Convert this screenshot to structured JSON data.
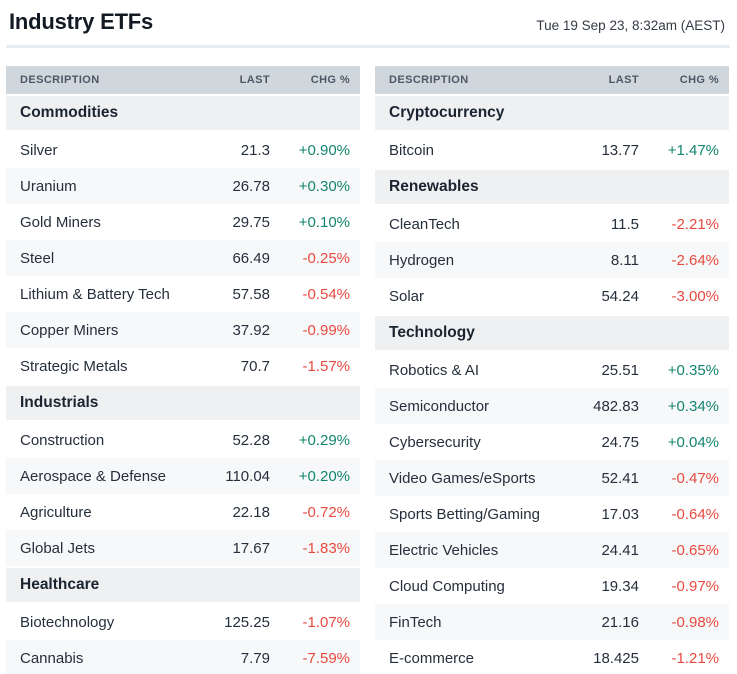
{
  "page": {
    "title": "Industry ETFs",
    "datetime": "Tue 19 Sep 23, 8:32am (AEST)"
  },
  "table_headers": {
    "description": "DESCRIPTION",
    "last": "LAST",
    "chg": "CHG %"
  },
  "colors": {
    "positive": "#13856e",
    "negative": "#e84a3f",
    "header_bg": "#d0d7dc",
    "section_bg": "#eef0f2",
    "stripe_bg": "#f7f8f9",
    "divider": "#e4edf3"
  },
  "tables": [
    {
      "name": "left",
      "rows": [
        {
          "type": "section",
          "label": "Commodities"
        },
        {
          "type": "data",
          "description": "Silver",
          "last": "21.3",
          "chg": "+0.90%"
        },
        {
          "type": "data",
          "description": "Uranium",
          "last": "26.78",
          "chg": "+0.30%"
        },
        {
          "type": "data",
          "description": "Gold Miners",
          "last": "29.75",
          "chg": "+0.10%"
        },
        {
          "type": "data",
          "description": "Steel",
          "last": "66.49",
          "chg": "-0.25%"
        },
        {
          "type": "data",
          "description": "Lithium & Battery Tech",
          "last": "57.58",
          "chg": "-0.54%"
        },
        {
          "type": "data",
          "description": "Copper Miners",
          "last": "37.92",
          "chg": "-0.99%"
        },
        {
          "type": "data",
          "description": "Strategic Metals",
          "last": "70.7",
          "chg": "-1.57%"
        },
        {
          "type": "section",
          "label": "Industrials"
        },
        {
          "type": "data",
          "description": "Construction",
          "last": "52.28",
          "chg": "+0.29%"
        },
        {
          "type": "data",
          "description": "Aerospace & Defense",
          "last": "110.04",
          "chg": "+0.20%"
        },
        {
          "type": "data",
          "description": "Agriculture",
          "last": "22.18",
          "chg": "-0.72%"
        },
        {
          "type": "data",
          "description": "Global Jets",
          "last": "17.67",
          "chg": "-1.83%"
        },
        {
          "type": "section",
          "label": "Healthcare"
        },
        {
          "type": "data",
          "description": "Biotechnology",
          "last": "125.25",
          "chg": "-1.07%"
        },
        {
          "type": "data",
          "description": "Cannabis",
          "last": "7.79",
          "chg": "-7.59%"
        }
      ]
    },
    {
      "name": "right",
      "rows": [
        {
          "type": "section",
          "label": "Cryptocurrency"
        },
        {
          "type": "data",
          "description": "Bitcoin",
          "last": "13.77",
          "chg": "+1.47%"
        },
        {
          "type": "section",
          "label": "Renewables"
        },
        {
          "type": "data",
          "description": "CleanTech",
          "last": "11.5",
          "chg": "-2.21%"
        },
        {
          "type": "data",
          "description": "Hydrogen",
          "last": "8.11",
          "chg": "-2.64%"
        },
        {
          "type": "data",
          "description": "Solar",
          "last": "54.24",
          "chg": "-3.00%"
        },
        {
          "type": "section",
          "label": "Technology"
        },
        {
          "type": "data",
          "description": "Robotics & AI",
          "last": "25.51",
          "chg": "+0.35%"
        },
        {
          "type": "data",
          "description": "Semiconductor",
          "last": "482.83",
          "chg": "+0.34%"
        },
        {
          "type": "data",
          "description": "Cybersecurity",
          "last": "24.75",
          "chg": "+0.04%"
        },
        {
          "type": "data",
          "description": "Video Games/eSports",
          "last": "52.41",
          "chg": "-0.47%"
        },
        {
          "type": "data",
          "description": "Sports Betting/Gaming",
          "last": "17.03",
          "chg": "-0.64%"
        },
        {
          "type": "data",
          "description": "Electric Vehicles",
          "last": "24.41",
          "chg": "-0.65%"
        },
        {
          "type": "data",
          "description": "Cloud Computing",
          "last": "19.34",
          "chg": "-0.97%"
        },
        {
          "type": "data",
          "description": "FinTech",
          "last": "21.16",
          "chg": "-0.98%"
        },
        {
          "type": "data",
          "description": "E-commerce",
          "last": "18.425",
          "chg": "-1.21%"
        }
      ]
    }
  ]
}
